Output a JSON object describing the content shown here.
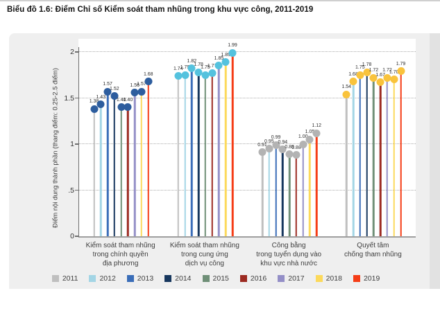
{
  "page": {
    "title": "Biểu đồ 1.6: Điểm Chỉ số Kiểm soát tham nhũng trong khu vực công, 2011-2019"
  },
  "chart_data": {
    "type": "lollipop",
    "title": "Biểu đồ 1.6: Điểm Chỉ số Kiểm soát tham nhũng trong khu vực công, 2011-2019",
    "xlabel": "",
    "ylabel": "Điểm nội dung thành phần (thang điểm: 0.25-2.5 điểm)",
    "ylim": [
      0,
      2.05
    ],
    "grid": "horizontal dotted at 0.5 steps",
    "legend_position": "bottom",
    "yticks": [
      {
        "value": 0,
        "label": "0"
      },
      {
        "value": 0.5,
        "label": ".5"
      },
      {
        "value": 1,
        "label": "1"
      },
      {
        "value": 1.5,
        "label": "1.5"
      },
      {
        "value": 2,
        "label": "2"
      }
    ],
    "years": [
      {
        "year": "2011",
        "color": "#bfbfbf"
      },
      {
        "year": "2012",
        "color": "#a3d5e5"
      },
      {
        "year": "2013",
        "color": "#3a6db8"
      },
      {
        "year": "2014",
        "color": "#17375e"
      },
      {
        "year": "2015",
        "color": "#6f8f77"
      },
      {
        "year": "2016",
        "color": "#9c2a21"
      },
      {
        "year": "2017",
        "color": "#948fc7"
      },
      {
        "year": "2018",
        "color": "#fcd95b"
      },
      {
        "year": "2019",
        "color": "#f53d17"
      }
    ],
    "groups": [
      {
        "label_lines": [
          "Kiểm soát tham nhũng",
          "trong chính quyền",
          "địa phương"
        ],
        "dot_color": "#2d5d9e",
        "values": [
          1.38,
          1.43,
          1.57,
          1.52,
          1.4,
          1.4,
          1.56,
          1.57,
          1.68
        ],
        "value_labels": [
          "1.38",
          "1.43",
          "1.57",
          "1.52",
          "1.40",
          "1.40",
          "1.56",
          "1.57",
          "1.68"
        ]
      },
      {
        "label_lines": [
          "Kiểm soát tham nhũng",
          "trong cung ứng",
          "dịch vụ công"
        ],
        "dot_color": "#54c2de",
        "values": [
          1.74,
          1.75,
          1.82,
          1.78,
          1.75,
          1.77,
          1.85,
          1.89,
          1.99
        ],
        "value_labels": [
          "1.74",
          "1.75",
          "1.82",
          "1.78",
          "1.75",
          "1.77",
          "1.85",
          "1.89",
          "1.99"
        ]
      },
      {
        "label_lines": [
          "Công bằng",
          "trong tuyển dụng vào",
          "khu vực nhà nước"
        ],
        "dot_color": "#b3b3b3",
        "values": [
          0.91,
          0.95,
          0.99,
          0.94,
          0.89,
          0.88,
          1.0,
          1.05,
          1.12
        ],
        "value_labels": [
          "0.91",
          "0.95",
          "0.99",
          "0.94",
          "0.89",
          "0.88",
          "1.00",
          "1.05",
          "1.12"
        ]
      },
      {
        "label_lines": [
          "Quyết tâm",
          "chống tham nhũng"
        ],
        "dot_color": "#f9c33c",
        "values": [
          1.54,
          1.68,
          1.75,
          1.78,
          1.72,
          1.67,
          1.72,
          1.7,
          1.79
        ],
        "value_labels": [
          "1.54",
          "1.68",
          "1.75",
          "1.78",
          "1.72",
          "1.67",
          "1.72",
          "1.70",
          "1.79"
        ]
      }
    ]
  }
}
